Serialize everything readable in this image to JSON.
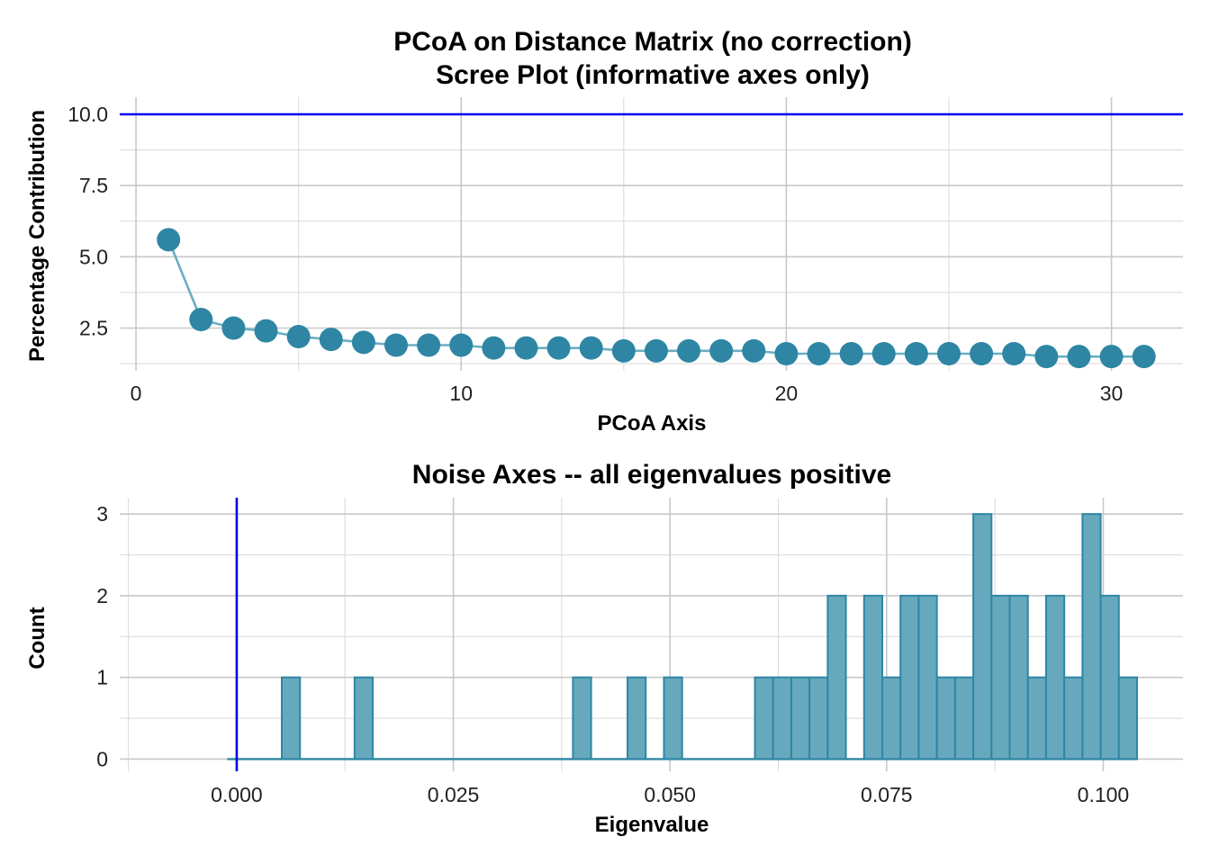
{
  "chart_data": [
    {
      "type": "line",
      "title": "PCoA on Distance Matrix (no correction)",
      "subtitle": "Scree Plot (informative axes only)",
      "xlabel": "PCoA Axis",
      "ylabel": "Percentage Contribution",
      "xlim": [
        -0.5,
        32.2
      ],
      "ylim": [
        1.0,
        10.6
      ],
      "x_ticks": [
        0,
        10,
        20,
        30
      ],
      "y_ticks": [
        2.5,
        5.0,
        7.5,
        10.0
      ],
      "y_tick_labels": [
        "2.5",
        "5.0",
        "7.5",
        "10.0"
      ],
      "grid": true,
      "reference_line": {
        "axis": "y",
        "value": 10.0,
        "color": "#0000ee"
      },
      "series": [
        {
          "color": "#2e86a4",
          "line_color": "#6aaec3",
          "x": [
            1,
            2,
            3,
            4,
            5,
            6,
            7,
            8,
            9,
            10,
            11,
            12,
            13,
            14,
            15,
            16,
            17,
            18,
            19,
            20,
            21,
            22,
            23,
            24,
            25,
            26,
            27,
            28,
            29,
            30,
            31
          ],
          "y": [
            5.6,
            2.8,
            2.5,
            2.4,
            2.2,
            2.1,
            2.0,
            1.9,
            1.9,
            1.9,
            1.8,
            1.8,
            1.8,
            1.8,
            1.7,
            1.7,
            1.7,
            1.7,
            1.7,
            1.6,
            1.6,
            1.6,
            1.6,
            1.6,
            1.6,
            1.6,
            1.6,
            1.5,
            1.5,
            1.5,
            1.5
          ]
        }
      ]
    },
    {
      "type": "bar",
      "title": "Noise Axes -- all eigenvalues positive",
      "xlabel": "Eigenvalue",
      "ylabel": "Count",
      "xlim": [
        -0.0135,
        0.1092
      ],
      "ylim": [
        -0.15,
        3.2
      ],
      "x_ticks": [
        0.0,
        0.025,
        0.05,
        0.075,
        0.1
      ],
      "x_tick_labels": [
        "0.000",
        "0.025",
        "0.050",
        "0.075",
        "0.100"
      ],
      "y_ticks": [
        0,
        1,
        2,
        3
      ],
      "grid": true,
      "reference_line": {
        "axis": "x",
        "value": 0.0,
        "color": "#0000ee"
      },
      "fill": "#66a9bd",
      "stroke": "#2e86a4",
      "bin_start": -0.0011,
      "bin_width": 0.0021,
      "counts": [
        0,
        0,
        0,
        1,
        0,
        0,
        0,
        1,
        0,
        0,
        0,
        0,
        0,
        0,
        0,
        0,
        0,
        0,
        0,
        1,
        0,
        0,
        1,
        0,
        1,
        0,
        0,
        0,
        0,
        1,
        1,
        1,
        1,
        2,
        0,
        2,
        1,
        2,
        2,
        1,
        1,
        3,
        2,
        2,
        1,
        2,
        1,
        3,
        2,
        1
      ]
    }
  ]
}
